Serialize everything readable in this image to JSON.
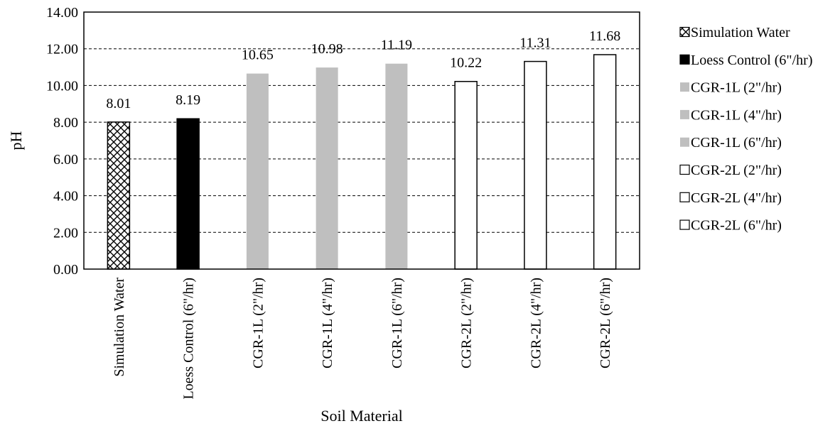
{
  "chart_data": {
    "type": "bar",
    "title": "",
    "xlabel": "Soil Material",
    "ylabel": "pH",
    "ylim": [
      0,
      14
    ],
    "yticks": [
      "0.00",
      "2.00",
      "4.00",
      "6.00",
      "8.00",
      "10.00",
      "12.00",
      "14.00"
    ],
    "grid": true,
    "legend_position": "right",
    "categories": [
      "Simulation Water",
      "Loess Control (6\"/hr)",
      "CGR-1L (2\"/hr)",
      "CGR-1L (4\"/hr)",
      "CGR-1L (6\"/hr)",
      "CGR-2L (2\"/hr)",
      "CGR-2L (4\"/hr)",
      "CGR-2L (6\"/hr)"
    ],
    "values": [
      8.01,
      8.19,
      10.65,
      10.98,
      11.19,
      10.22,
      11.31,
      11.68
    ],
    "value_labels": [
      "8.01",
      "8.19",
      "10.65",
      "10.98",
      "11.19",
      "10.22",
      "11.31",
      "11.68"
    ],
    "bar_styles": [
      "crosshatch",
      "black",
      "gray",
      "gray",
      "gray",
      "white",
      "white",
      "white"
    ],
    "legend": [
      {
        "label": "Simulation Water",
        "style": "crosshatch"
      },
      {
        "label": "Loess Control (6\"/hr)",
        "style": "black"
      },
      {
        "label": "CGR-1L (2\"/hr)",
        "style": "gray"
      },
      {
        "label": "CGR-1L (4\"/hr)",
        "style": "gray"
      },
      {
        "label": "CGR-1L (6\"/hr)",
        "style": "gray"
      },
      {
        "label": "CGR-2L (2\"/hr)",
        "style": "white"
      },
      {
        "label": "CGR-2L (4\"/hr)",
        "style": "white"
      },
      {
        "label": "CGR-2L (6\"/hr)",
        "style": "white"
      }
    ],
    "colors": {
      "black": "#000000",
      "gray": "#bfbfbf",
      "white": "#ffffff",
      "crosshatch_fill": "#ffffff",
      "crosshatch_line": "#000000",
      "gridline": "#000000"
    }
  }
}
